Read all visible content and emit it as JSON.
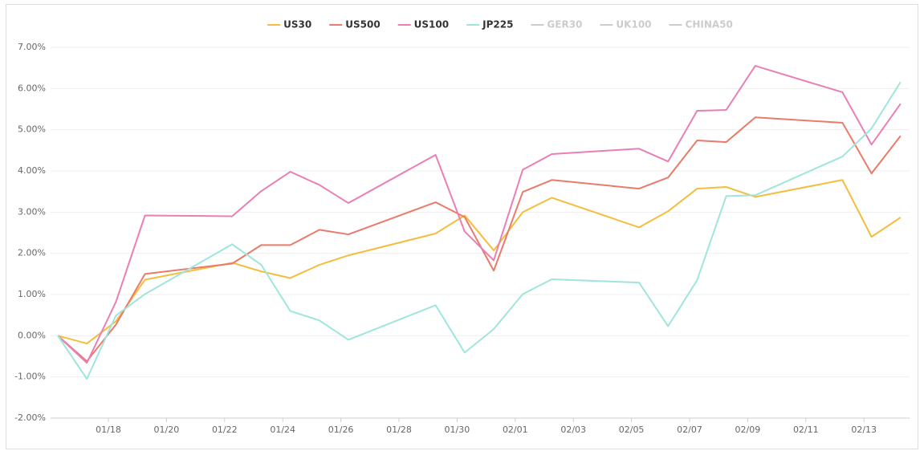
{
  "chart_data": {
    "type": "line",
    "x": [
      "01/16",
      "01/17",
      "01/18",
      "01/19",
      "01/22",
      "01/23",
      "01/24",
      "01/25",
      "01/26",
      "01/29",
      "01/30",
      "01/31",
      "02/01",
      "02/02",
      "02/05",
      "02/06",
      "02/07",
      "02/08",
      "02/09",
      "02/12",
      "02/13",
      "02/14"
    ],
    "series": [
      {
        "name": "US30",
        "color": "#f5bd3d",
        "values": [
          0,
          -0.19,
          0.35,
          1.36,
          1.77,
          1.56,
          1.4,
          1.72,
          1.95,
          2.48,
          2.92,
          2.07,
          3.0,
          3.35,
          2.63,
          3.02,
          3.57,
          3.61,
          3.37,
          3.78,
          2.4,
          2.87
        ]
      },
      {
        "name": "US500",
        "color": "#ea7a6a",
        "values": [
          0,
          -0.62,
          0.27,
          1.5,
          1.75,
          2.2,
          2.2,
          2.57,
          2.46,
          3.24,
          2.88,
          1.58,
          3.49,
          3.78,
          3.57,
          3.84,
          4.74,
          4.7,
          5.3,
          5.17,
          3.94,
          4.85
        ]
      },
      {
        "name": "US100",
        "color": "#e97fb5",
        "values": [
          0,
          -0.66,
          0.82,
          2.92,
          2.9,
          3.51,
          3.98,
          3.66,
          3.22,
          4.39,
          2.53,
          1.83,
          4.03,
          4.41,
          4.54,
          4.23,
          5.46,
          5.48,
          6.55,
          5.91,
          4.64,
          5.63
        ]
      },
      {
        "name": "JP225",
        "color": "#9fe5dc",
        "values": [
          0,
          -1.05,
          0.49,
          1.01,
          2.22,
          1.72,
          0.6,
          0.37,
          -0.1,
          0.74,
          -0.41,
          0.16,
          1.01,
          1.37,
          1.29,
          0.23,
          1.35,
          3.39,
          3.41,
          4.35,
          5.03,
          6.16
        ]
      },
      {
        "name": "GER30",
        "color": "#cccccc",
        "visible": false
      },
      {
        "name": "UK100",
        "color": "#cccccc",
        "visible": false
      },
      {
        "name": "CHINA50",
        "color": "#cccccc",
        "visible": false
      }
    ],
    "ylim": [
      -2,
      7
    ],
    "yticks": [
      {
        "value": -2,
        "label": "-2.00%"
      },
      {
        "value": -1,
        "label": "-1.00%"
      },
      {
        "value": 0,
        "label": "0.00%"
      },
      {
        "value": 1,
        "label": "1.00%"
      },
      {
        "value": 2,
        "label": "2.00%"
      },
      {
        "value": 3,
        "label": "3.00%"
      },
      {
        "value": 4,
        "label": "4.00%"
      },
      {
        "value": 5,
        "label": "5.00%"
      },
      {
        "value": 6,
        "label": "6.00%"
      },
      {
        "value": 7,
        "label": "7.00%"
      }
    ],
    "xticks": [
      "01/18",
      "01/20",
      "01/22",
      "01/24",
      "01/26",
      "01/28",
      "01/30",
      "02/01",
      "02/03",
      "02/05",
      "02/07",
      "02/09",
      "02/11",
      "02/13"
    ],
    "grid": true,
    "legend": "top"
  }
}
